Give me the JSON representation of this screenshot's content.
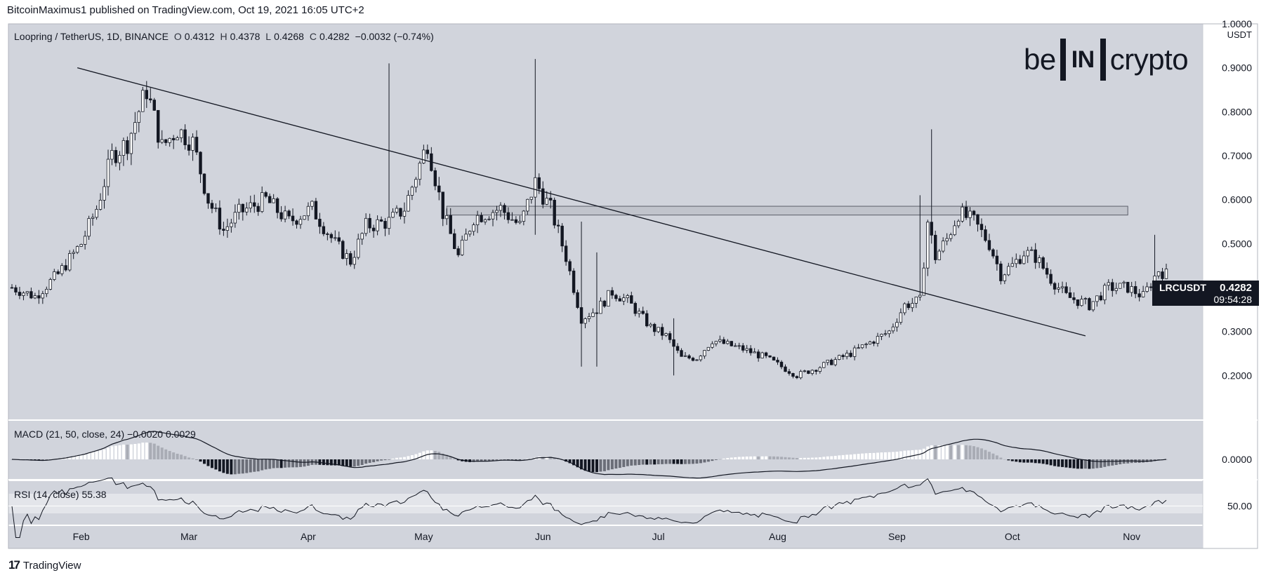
{
  "publisher_line": "BitcoinMaximus1 published on TradingView.com, Oct 19, 2021 16:05 UTC+2",
  "header": {
    "pair": "Loopring / TetherUS, 1D, BINANCE",
    "open_label": "O",
    "open": "0.4312",
    "high_label": "H",
    "high": "0.4378",
    "low_label": "L",
    "low": "0.4268",
    "close_label": "C",
    "close": "0.4282",
    "change": "−0.0032 (−0.74%)"
  },
  "logo": {
    "left": "be",
    "box": "IN",
    "right": "crypto"
  },
  "currency_label": "USDT",
  "symbol_tag": {
    "name": "LRCUSDT",
    "price": "0.4282",
    "countdown": "09:54:28"
  },
  "macd_label": "MACD (21, 50, close, 24)  −0.0020  0.0029",
  "rsi_label": "RSI (14, close)  55.38",
  "footer_brand": "TradingView",
  "colors": {
    "plot_bg": "#d1d4dc",
    "ink": "#131722",
    "bull_body": "#ffffff",
    "bear_body": "#131722",
    "rsi_band": "#e3e5ea"
  },
  "chart_data": {
    "type": "candlestick",
    "interval": "1D",
    "price_ylim": [
      0.1,
      1.0
    ],
    "price_ticks": [
      "1.0000",
      "0.9000",
      "0.8000",
      "0.7000",
      "0.6000",
      "0.5000",
      "0.4000",
      "0.3000",
      "0.2000"
    ],
    "x_tick_labels": [
      "Feb",
      "Mar",
      "Apr",
      "May",
      "Jun",
      "Jul",
      "Aug",
      "Sep",
      "Oct",
      "Nov"
    ],
    "x_tick_days": [
      31,
      59,
      90,
      120,
      151,
      181,
      212,
      243,
      273,
      304
    ],
    "close_series": {
      "start": "2021-01-14",
      "knots": [
        [
          0,
          0.4
        ],
        [
          6,
          0.38
        ],
        [
          12,
          0.43
        ],
        [
          18,
          0.5
        ],
        [
          22,
          0.58
        ],
        [
          26,
          0.7
        ],
        [
          30,
          0.73
        ],
        [
          35,
          0.85
        ],
        [
          39,
          0.72
        ],
        [
          43,
          0.76
        ],
        [
          47,
          0.73
        ],
        [
          51,
          0.6
        ],
        [
          55,
          0.53
        ],
        [
          59,
          0.57
        ],
        [
          66,
          0.6
        ],
        [
          72,
          0.55
        ],
        [
          78,
          0.58
        ],
        [
          84,
          0.5
        ],
        [
          88,
          0.46
        ],
        [
          92,
          0.54
        ],
        [
          98,
          0.55
        ],
        [
          102,
          0.58
        ],
        [
          108,
          0.73
        ],
        [
          112,
          0.57
        ],
        [
          116,
          0.47
        ],
        [
          120,
          0.56
        ],
        [
          127,
          0.58
        ],
        [
          132,
          0.54
        ],
        [
          136,
          0.64
        ],
        [
          140,
          0.58
        ],
        [
          144,
          0.47
        ],
        [
          148,
          0.33
        ],
        [
          152,
          0.35
        ],
        [
          156,
          0.39
        ],
        [
          160,
          0.37
        ],
        [
          166,
          0.31
        ],
        [
          170,
          0.29
        ],
        [
          174,
          0.24
        ],
        [
          178,
          0.24
        ],
        [
          182,
          0.28
        ],
        [
          186,
          0.27
        ],
        [
          190,
          0.26
        ],
        [
          196,
          0.24
        ],
        [
          202,
          0.21
        ],
        [
          204,
          0.2
        ],
        [
          210,
          0.22
        ],
        [
          218,
          0.25
        ],
        [
          222,
          0.27
        ],
        [
          228,
          0.3
        ],
        [
          232,
          0.36
        ],
        [
          236,
          0.37
        ],
        [
          238,
          0.55
        ],
        [
          240,
          0.47
        ],
        [
          243,
          0.51
        ],
        [
          246,
          0.57
        ],
        [
          250,
          0.55
        ],
        [
          254,
          0.5
        ],
        [
          257,
          0.43
        ],
        [
          260,
          0.45
        ],
        [
          263,
          0.48
        ],
        [
          266,
          0.47
        ],
        [
          270,
          0.42
        ],
        [
          274,
          0.38
        ],
        [
          280,
          0.36
        ],
        [
          285,
          0.4
        ],
        [
          290,
          0.4
        ],
        [
          294,
          0.38
        ],
        [
          298,
          0.44
        ],
        [
          300,
          0.43
        ]
      ],
      "wicks": [
        [
          98,
          0.91,
          0.52
        ],
        [
          136,
          0.92,
          0.52
        ],
        [
          148,
          0.55,
          0.22
        ],
        [
          152,
          0.48,
          0.22
        ],
        [
          172,
          0.33,
          0.2
        ],
        [
          239,
          0.76,
          0.5
        ],
        [
          236,
          0.61,
          0.37
        ],
        [
          297,
          0.52,
          0.4
        ]
      ]
    },
    "trendline": {
      "from": [
        "2021-01-31",
        0.9
      ],
      "to": [
        "2021-10-20",
        0.29
      ]
    },
    "resistance_zone": {
      "from": "2021-05-07",
      "to": "2021-10-31",
      "low": 0.565,
      "high": 0.585
    },
    "macd": {
      "label": "MACD (21, 50, close, 24)",
      "values": [
        "−0.0020",
        "0.0029"
      ],
      "zero_tick": "0.0000"
    },
    "rsi": {
      "label": "RSI (14, close)",
      "value": "55.38",
      "tick": "50.00"
    }
  }
}
